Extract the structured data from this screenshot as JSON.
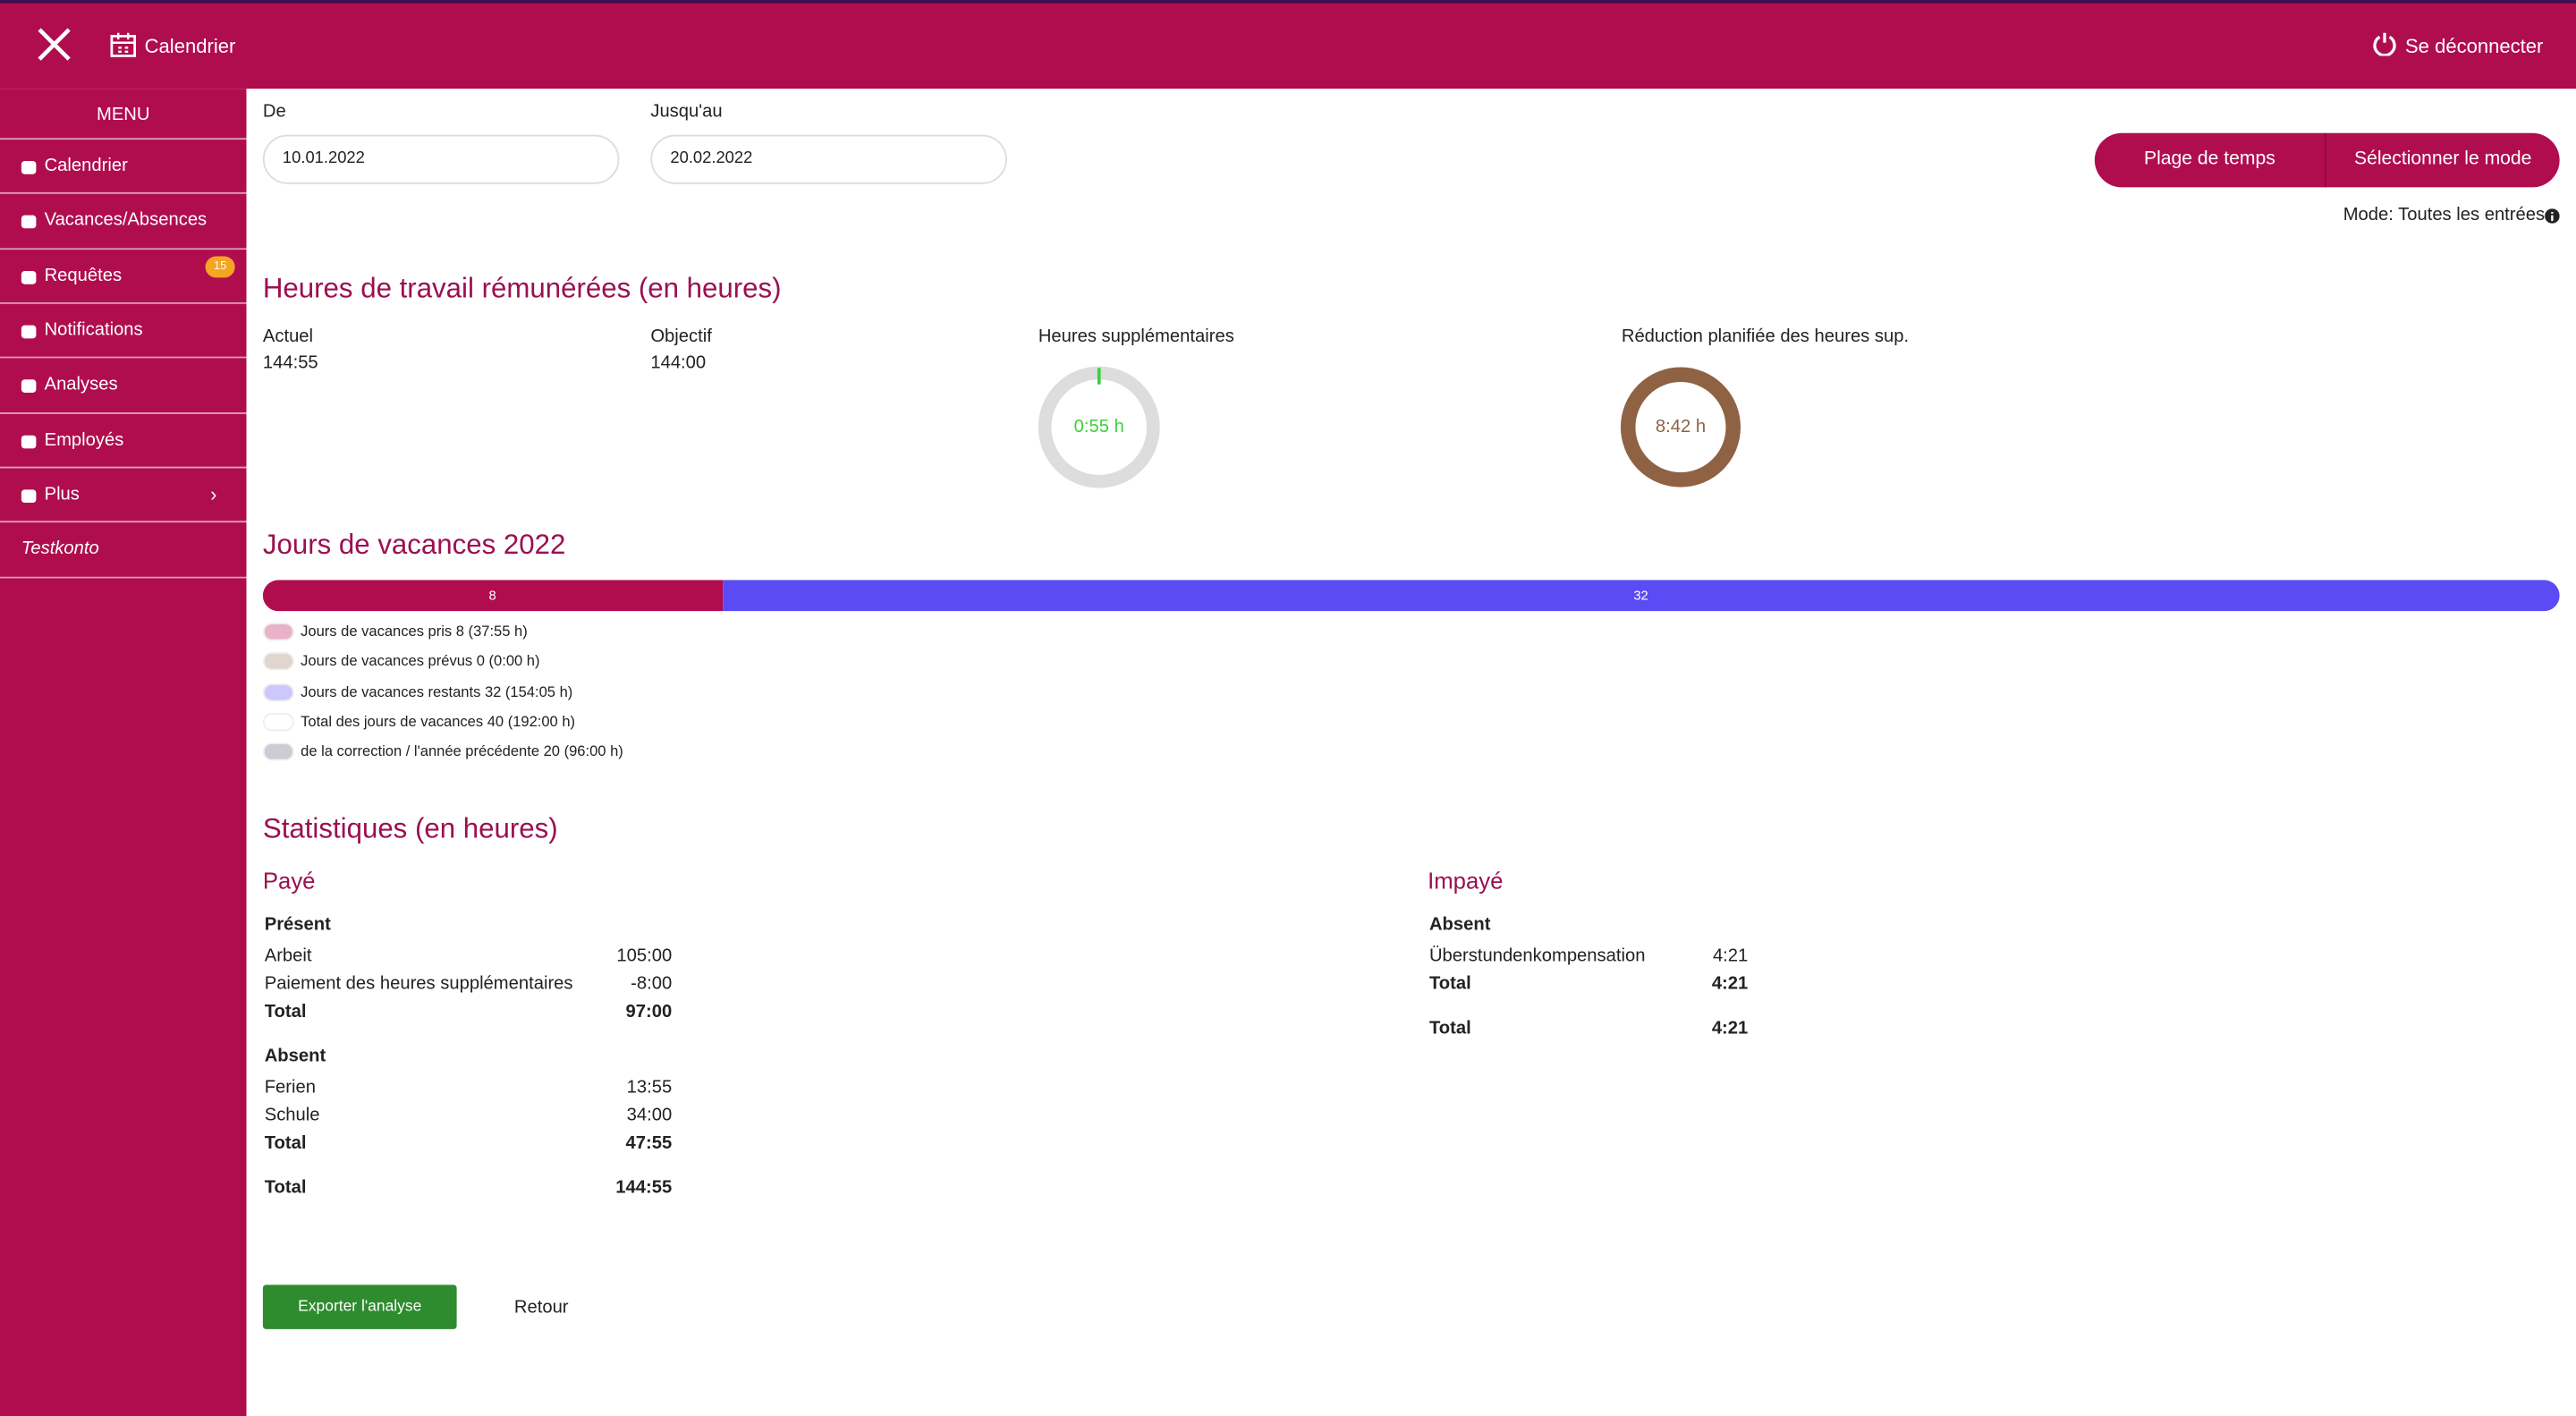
{
  "header": {
    "title": "Calendrier",
    "logout": "Se déconnecter"
  },
  "menu": {
    "title": "MENU",
    "items": [
      "Calendrier",
      "Vacances/Absences",
      "Requêtes",
      "Notifications",
      "Analyses",
      "Employés",
      "Plus"
    ],
    "badge": 15,
    "account": "Testkonto"
  },
  "filter": {
    "from_label": "De",
    "from": "10.01.2022",
    "to_label": "Jusqu'au",
    "to": "20.02.2022",
    "buttons": [
      "Plage de temps",
      "Sélectionner le mode"
    ],
    "mode": "Mode: Toutes les entrées"
  },
  "paid_hours": {
    "title": "Heures de travail rémunérées (en heures)",
    "items": [
      {
        "label": "Actuel",
        "value": "144:55"
      },
      {
        "label": "Objectif",
        "value": "144:00"
      }
    ],
    "overtime": {
      "label": "Heures supplémentaires",
      "value": "0:55 h"
    },
    "reduction": {
      "label": "Réduction planifiée des heures sup.",
      "value": "8:42 h"
    }
  },
  "vacation": {
    "title": "Jours de vacances 2022",
    "bar": [
      {
        "value": 8,
        "color": "#b00d4f"
      },
      {
        "value": 32,
        "color": "#5b4bf5"
      }
    ],
    "legend": [
      {
        "label": "Jours de vacances pris 8  (37:55 h)",
        "color": "#e9b3c7"
      },
      {
        "label": "Jours de vacances prévus 0  (0:00 h)",
        "color": "#e0d5cf"
      },
      {
        "label": "Jours de vacances restants 32  (154:05 h)",
        "color": "#ccc8fb"
      },
      {
        "label": "Total des jours de vacances 40  (192:00 h)",
        "color": "#ffffff"
      },
      {
        "label": "de la correction / l'année précédente 20  (96:00 h)",
        "color": "#cdcbd6"
      }
    ]
  },
  "statistics": {
    "title": "Statistiques (en heures)",
    "paid": {
      "title": "Payé",
      "groups": [
        {
          "title": "Présent",
          "rows": [
            [
              "Arbeit",
              "105:00"
            ],
            [
              "Paiement des heures supplémentaires",
              "-8:00"
            ]
          ],
          "total": [
            "Total",
            "97:00"
          ]
        },
        {
          "title": "Absent",
          "rows": [
            [
              "Ferien",
              "13:55"
            ],
            [
              "Schule",
              "34:00"
            ]
          ],
          "total": [
            "Total",
            "47:55"
          ]
        }
      ],
      "total": [
        "Total",
        "144:55"
      ]
    },
    "unpaid": {
      "title": "Impayé",
      "groups": [
        {
          "title": "Absent",
          "rows": [
            [
              "Überstundenkompensation",
              "4:21"
            ]
          ],
          "total": [
            "Total",
            "4:21"
          ]
        }
      ],
      "total": [
        "Total",
        "4:21"
      ]
    }
  },
  "actions": {
    "export": "Exporter l'analyse",
    "back": "Retour"
  }
}
